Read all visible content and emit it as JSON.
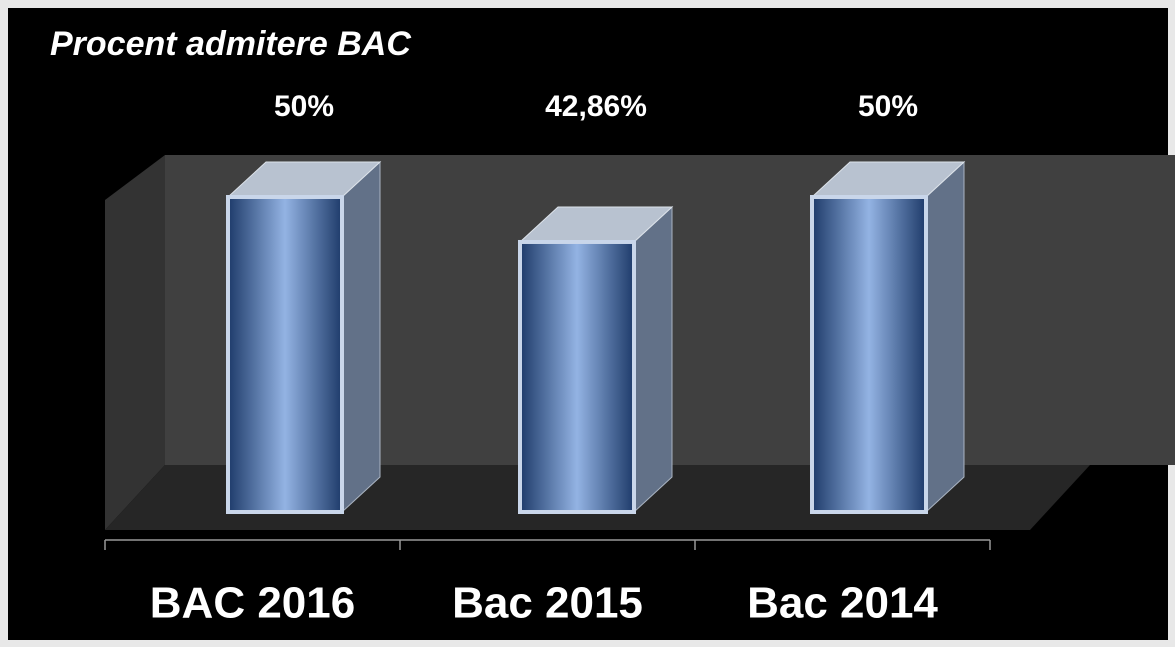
{
  "chart_data": {
    "type": "bar3d",
    "title": "Procent admitere BAC",
    "categories": [
      "BAC 2016",
      "Bac 2015",
      "Bac 2014"
    ],
    "values": [
      50,
      42.86,
      50
    ],
    "value_labels": [
      "50%",
      "42,86%",
      "50%"
    ],
    "color": "#2a4f86"
  }
}
